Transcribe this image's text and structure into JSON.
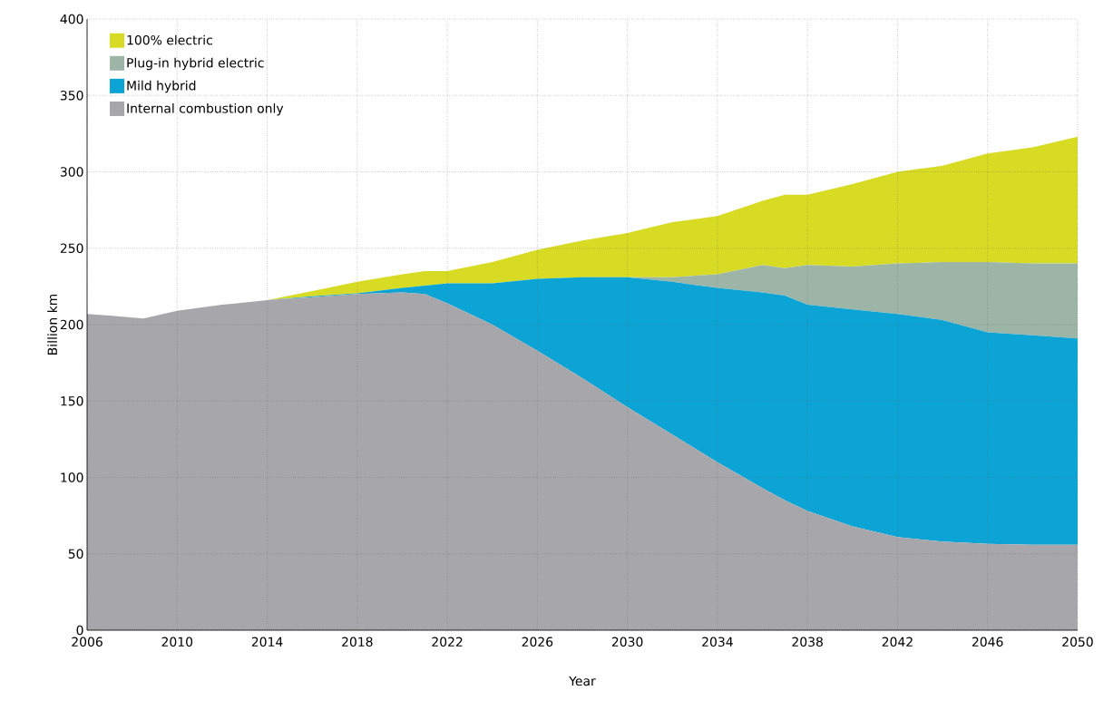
{
  "chart_data": {
    "type": "area",
    "stacked": true,
    "xlabel": "Year",
    "ylabel": "Billion km",
    "x": [
      2006,
      2007,
      2008.5,
      2010,
      2012,
      2014,
      2016,
      2018,
      2020,
      2021,
      2022,
      2024,
      2026,
      2028,
      2030,
      2032,
      2034,
      2036,
      2037,
      2038,
      2040,
      2042,
      2044,
      2046,
      2048,
      2050
    ],
    "series": [
      {
        "name": "Internal combustion only",
        "color": "#a7a6aa",
        "values": [
          207,
          206,
          204,
          209,
          213,
          216,
          218,
          220,
          221,
          220,
          214,
          200,
          183,
          165,
          146,
          128,
          110,
          93,
          85,
          78,
          68,
          61,
          58,
          56.5,
          56,
          56
        ]
      },
      {
        "name": "Mild hybrid",
        "color": "#0ba4d5",
        "values": [
          0,
          0,
          0,
          0,
          0,
          0,
          0.5,
          0.5,
          3,
          5.5,
          13,
          27,
          47,
          66,
          85,
          100,
          114,
          128,
          134,
          135,
          142,
          146,
          145,
          138.5,
          137,
          135
        ]
      },
      {
        "name": "Plug-in hybrid electric",
        "color": "#9db5a7",
        "values": [
          0,
          0,
          0,
          0,
          0,
          0,
          0,
          0,
          0,
          0,
          0,
          0,
          0,
          0,
          0,
          3,
          9,
          18,
          18,
          26,
          28,
          33,
          38,
          46,
          47,
          49
        ]
      },
      {
        "name": "100% electric",
        "color": "#d7db23",
        "values": [
          0,
          0,
          0,
          0,
          0,
          0,
          3.5,
          7.5,
          9,
          9.5,
          8,
          14,
          19,
          24,
          29,
          36,
          38,
          42,
          48,
          46,
          54,
          60,
          63,
          71,
          76,
          83
        ]
      }
    ],
    "xlim": [
      2006,
      2050
    ],
    "xticks": [
      2006,
      2010,
      2014,
      2018,
      2022,
      2026,
      2030,
      2034,
      2038,
      2042,
      2046,
      2050
    ],
    "ylim": [
      0,
      400
    ],
    "yticks": [
      0,
      50,
      100,
      150,
      200,
      250,
      300,
      350,
      400
    ],
    "grid": true,
    "legend": "top left"
  }
}
